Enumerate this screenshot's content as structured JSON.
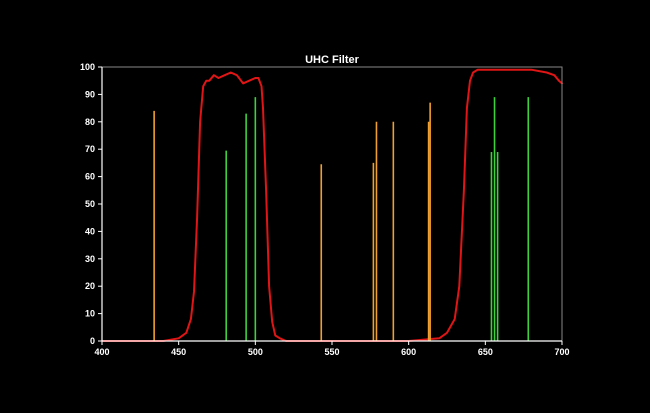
{
  "chart_data": {
    "type": "line",
    "title": "UHC Filter",
    "xlim": [
      400,
      700
    ],
    "ylim": [
      0,
      100
    ],
    "x_ticks": [
      400,
      450,
      500,
      550,
      600,
      650,
      700
    ],
    "y_ticks": [
      0,
      10,
      20,
      30,
      40,
      50,
      60,
      70,
      80,
      90,
      100
    ],
    "grid": false,
    "series": [
      {
        "kind": "curve",
        "color": "#e01515",
        "x": [
          400,
          440,
          450,
          455,
          458,
          460,
          462,
          464,
          466,
          468,
          470,
          473,
          476,
          480,
          484,
          488,
          492,
          496,
          500,
          502,
          504,
          505,
          507,
          509,
          511,
          513,
          516,
          520,
          540,
          560,
          600,
          620,
          625,
          630,
          633,
          636,
          638,
          640,
          642,
          645,
          650,
          660,
          670,
          680,
          690,
          695,
          698,
          700
        ],
        "y": [
          0,
          0,
          1,
          3,
          8,
          18,
          45,
          80,
          93,
          95,
          95,
          97,
          96,
          97,
          98,
          97,
          94,
          95,
          96,
          96,
          93,
          85,
          55,
          20,
          7,
          2,
          1,
          0,
          0,
          0,
          0,
          1,
          3,
          8,
          20,
          55,
          85,
          95,
          98,
          99,
          99,
          99,
          99,
          99,
          98,
          97,
          95,
          94
        ]
      },
      {
        "kind": "spectral-lines",
        "name": "",
        "color": "#f0a030",
        "x": [
          434,
          543,
          577,
          579,
          590,
          613,
          614
        ],
        "values": [
          84,
          64.5,
          65,
          80,
          80,
          80,
          87
        ]
      },
      {
        "kind": "spectral-lines",
        "name": "",
        "color": "#3ed13e",
        "x": [
          481,
          494,
          500,
          654,
          656,
          658,
          678
        ],
        "values": [
          69.5,
          83,
          89,
          69,
          89,
          69,
          89
        ]
      }
    ],
    "colors": {
      "background": "#000000",
      "axis": "#ffffff",
      "plot_border": "#888888"
    }
  }
}
